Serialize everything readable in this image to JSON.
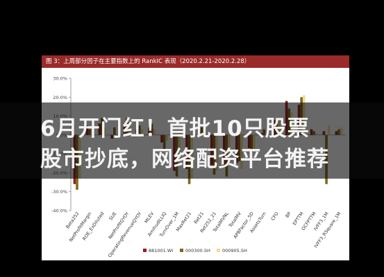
{
  "figure_title": "图 3：上周部分因子在主要指数上的 RankIC 表现（2020.2.21-2020.2.28）",
  "overlay_text": {
    "line1": "6月开门红！首批10只股票",
    "line2": "股市抄底，网络配资平台推荐"
  },
  "colors": {
    "background": "#000000",
    "title_bar": "#9b2a2a",
    "series_881001": "#9b1c1c",
    "series_000300": "#7f6a1a",
    "series_000905": "#f2dc92"
  },
  "chart_data": {
    "type": "bar",
    "title": "",
    "xlabel": "",
    "ylabel": "",
    "ylim": [
      -40,
      30
    ],
    "yticks": [
      "30.0%",
      "20.0%",
      "10.0%",
      "0.0%",
      "-10.0%",
      "-20.0%",
      "-30.0%",
      "-40.0%"
    ],
    "grid": false,
    "legend_position": "bottom",
    "categories": [
      "Beta252",
      "NetProfitMargin",
      "ROE_ExDiluted",
      "SUE",
      "NetProfitQYOY",
      "OperatingRevenueQYOY",
      "MLEV",
      "AmihudILLIQ",
      "TurnOver_1M",
      "MaxRet21",
      "Ret21",
      "Ret252_21",
      "TotalMVNL",
      "TotalMV",
      "APBFactor_5D",
      "AssetsTurn",
      "CFO",
      "BP",
      "EPTTM",
      "OCFPTTM",
      "IVFF3_1M",
      "IVFF3_RSquare_1M"
    ],
    "series": [
      {
        "name": "881001.WI",
        "values": [
          -26,
          5,
          6,
          -2,
          6,
          3,
          4,
          -4,
          -19,
          -18,
          2,
          -16,
          -17,
          -15,
          -7,
          1,
          8,
          18,
          16,
          3,
          2,
          2
        ]
      },
      {
        "name": "000300.SH",
        "values": [
          -29,
          3,
          9,
          4,
          9,
          5,
          6,
          -8,
          -22,
          -26,
          4,
          -21,
          -22,
          -14,
          -9,
          3,
          7,
          14,
          20,
          2,
          -26,
          3
        ]
      },
      {
        "name": "000905.SH",
        "values": [
          -23,
          7,
          4,
          -2,
          7,
          3,
          3,
          -3,
          -14,
          -23,
          3,
          -19,
          -14,
          -18,
          -8,
          2,
          8,
          12,
          21,
          1,
          5,
          4
        ]
      }
    ]
  }
}
